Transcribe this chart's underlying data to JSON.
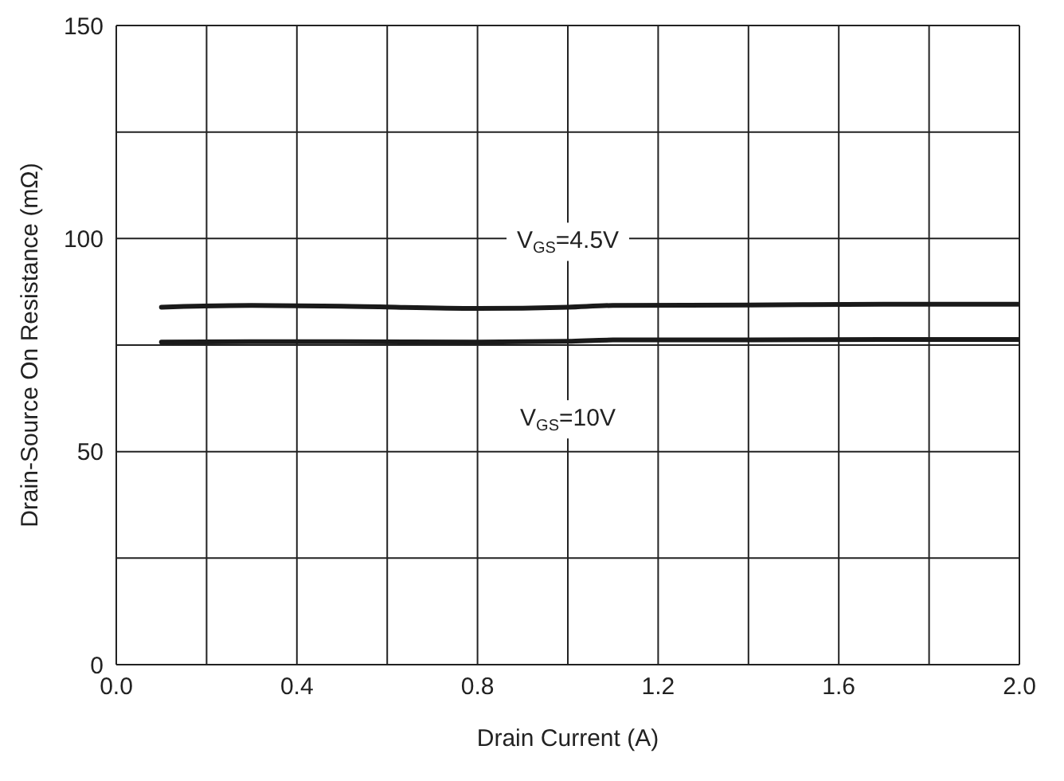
{
  "chart_data": {
    "type": "line",
    "xlabel": "Drain Current (A)",
    "ylabel": "Drain-Source On Resistance (mΩ)",
    "xlim": [
      0,
      2
    ],
    "xticks": [
      {
        "value": 0,
        "label": "0.0"
      },
      {
        "value": 0.2,
        "label": null
      },
      0.4,
      {
        "value": 0.6,
        "label": null
      },
      0.8,
      {
        "value": 1.0,
        "label": null
      },
      1.2,
      {
        "value": 1.4,
        "label": null
      },
      1.6,
      {
        "value": 1.8,
        "label": null
      },
      {
        "value": 2,
        "label": "2.0"
      }
    ],
    "ylim": [
      0,
      150
    ],
    "yticks": [
      0,
      {
        "value": 25,
        "label": null
      },
      50,
      {
        "value": 75,
        "label": null
      },
      100,
      {
        "value": 125,
        "label": null
      },
      150
    ],
    "grid": true,
    "marker": "none",
    "line_style": "solid",
    "x": [
      0.1,
      0.3,
      0.5,
      0.8,
      1.0,
      1.1,
      1.4,
      1.7,
      2.0
    ],
    "series": [
      {
        "name": "V$_{GS}$=4.5V",
        "color": "#1a1a1a",
        "values": [
          83.9,
          84.3,
          84.1,
          83.6,
          83.9,
          84.3,
          84.4,
          84.6,
          84.6
        ]
      },
      {
        "name": "V$_{GS}$=10V",
        "color": "#1a1a1a",
        "values": [
          75.7,
          75.8,
          75.8,
          75.7,
          75.9,
          76.2,
          76.2,
          76.3,
          76.3
        ]
      }
    ]
  }
}
